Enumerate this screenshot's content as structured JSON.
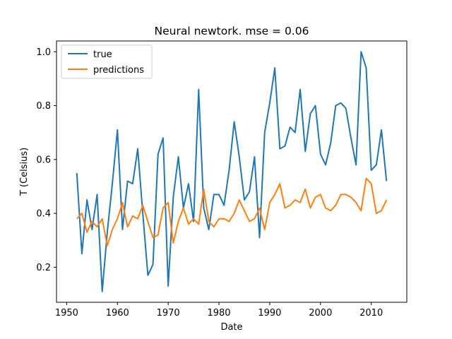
{
  "chart_data": {
    "type": "line",
    "title": "Neural newtork. mse = 0.06",
    "xlabel": "Date",
    "ylabel": "T (Celsius)",
    "xlim": [
      1948,
      2017
    ],
    "ylim": [
      0.07,
      1.04
    ],
    "xticks": [
      1950,
      1960,
      1970,
      1980,
      1990,
      2000,
      2010
    ],
    "yticks": [
      0.2,
      0.4,
      0.6,
      0.8,
      1.0
    ],
    "ytick_labels": [
      "0.2",
      "0.4",
      "0.6",
      "0.8",
      "1.0"
    ],
    "grid": false,
    "legend_position": "top-left",
    "x": [
      1952,
      1953,
      1954,
      1955,
      1956,
      1957,
      1958,
      1959,
      1960,
      1961,
      1962,
      1963,
      1964,
      1965,
      1966,
      1967,
      1968,
      1969,
      1970,
      1971,
      1972,
      1973,
      1974,
      1975,
      1976,
      1977,
      1978,
      1979,
      1980,
      1981,
      1982,
      1983,
      1984,
      1985,
      1986,
      1987,
      1988,
      1989,
      1990,
      1991,
      1992,
      1993,
      1994,
      1995,
      1996,
      1997,
      1998,
      1999,
      2000,
      2001,
      2002,
      2003,
      2004,
      2005,
      2006,
      2007,
      2008,
      2009,
      2010,
      2011,
      2012,
      2013
    ],
    "series": [
      {
        "name": "true",
        "color": "#1f77b4",
        "values": [
          0.55,
          0.25,
          0.45,
          0.34,
          0.47,
          0.11,
          0.33,
          0.51,
          0.71,
          0.34,
          0.52,
          0.51,
          0.64,
          0.4,
          0.17,
          0.21,
          0.62,
          0.68,
          0.13,
          0.46,
          0.61,
          0.42,
          0.51,
          0.37,
          0.86,
          0.42,
          0.34,
          0.47,
          0.47,
          0.43,
          0.56,
          0.74,
          0.61,
          0.45,
          0.48,
          0.61,
          0.31,
          0.7,
          0.81,
          0.94,
          0.64,
          0.65,
          0.72,
          0.7,
          0.86,
          0.63,
          0.77,
          0.8,
          0.62,
          0.58,
          0.66,
          0.8,
          0.81,
          0.79,
          0.68,
          0.58,
          1.0,
          0.94,
          0.56,
          0.58,
          0.71,
          0.52
        ]
      },
      {
        "name": "predictions",
        "color": "#ff7f0e",
        "values": [
          0.38,
          0.4,
          0.33,
          0.37,
          0.35,
          0.38,
          0.28,
          0.34,
          0.38,
          0.44,
          0.35,
          0.39,
          0.38,
          0.43,
          0.37,
          0.31,
          0.32,
          0.42,
          0.44,
          0.29,
          0.37,
          0.42,
          0.36,
          0.38,
          0.36,
          0.49,
          0.37,
          0.35,
          0.38,
          0.38,
          0.37,
          0.4,
          0.45,
          0.41,
          0.37,
          0.38,
          0.42,
          0.34,
          0.44,
          0.47,
          0.51,
          0.42,
          0.43,
          0.45,
          0.44,
          0.49,
          0.42,
          0.46,
          0.47,
          0.42,
          0.41,
          0.43,
          0.47,
          0.47,
          0.46,
          0.44,
          0.41,
          0.53,
          0.51,
          0.4,
          0.41,
          0.45
        ]
      }
    ]
  }
}
